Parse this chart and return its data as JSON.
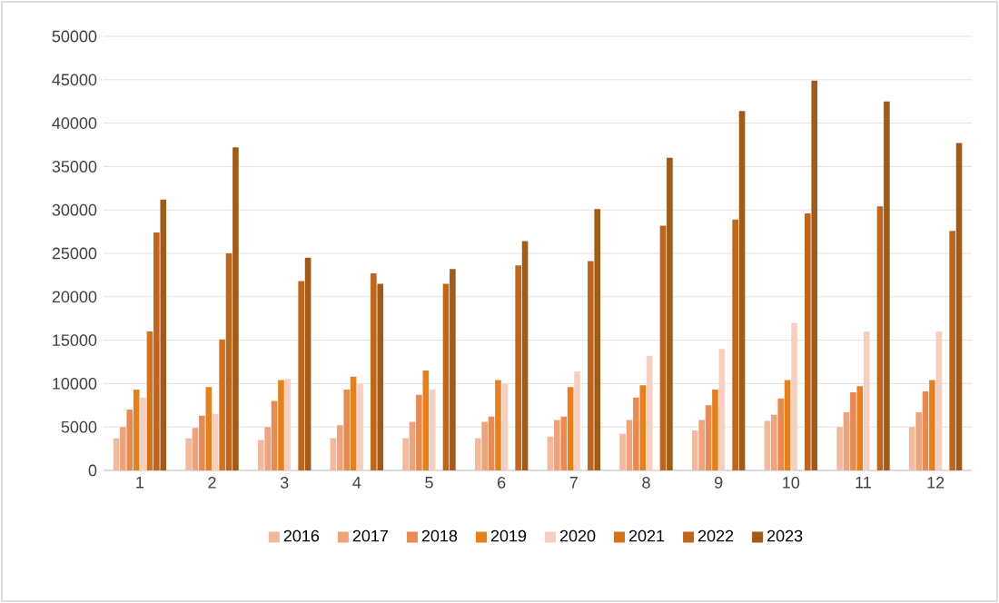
{
  "chart_data": {
    "type": "bar",
    "categories": [
      "1",
      "2",
      "3",
      "4",
      "5",
      "6",
      "7",
      "8",
      "9",
      "10",
      "11",
      "12"
    ],
    "series": [
      {
        "name": "2016",
        "color": "#f4b89a",
        "values": [
          3700,
          3700,
          3500,
          3700,
          3700,
          3700,
          3900,
          4200,
          4600,
          5700,
          5000,
          5000
        ]
      },
      {
        "name": "2017",
        "color": "#f0a27a",
        "values": [
          5000,
          4900,
          5000,
          5200,
          5600,
          5600,
          5800,
          5800,
          5800,
          6400,
          6700,
          6700
        ]
      },
      {
        "name": "2018",
        "color": "#ea8a50",
        "values": [
          7000,
          6300,
          8000,
          9300,
          8700,
          6200,
          6200,
          8400,
          7500,
          8300,
          9000,
          9100
        ]
      },
      {
        "name": "2019",
        "color": "#e87f1a",
        "values": [
          9300,
          9600,
          10400,
          10800,
          11500,
          10400,
          9600,
          9800,
          9300,
          10400,
          9700,
          10400
        ]
      },
      {
        "name": "2020",
        "color": "#f6cfc0",
        "values": [
          8400,
          6500,
          10500,
          10000,
          9300,
          10000,
          11400,
          13200,
          14000,
          17000,
          16000,
          16000
        ]
      },
      {
        "name": "2021",
        "color": "#d5731a",
        "values": [
          16000,
          15100,
          null,
          null,
          null,
          null,
          null,
          null,
          null,
          null,
          null,
          null
        ]
      },
      {
        "name": "2022",
        "color": "#c0651a",
        "values": [
          27400,
          25000,
          21800,
          22700,
          21500,
          23600,
          24100,
          28200,
          28900,
          29600,
          30400,
          27600
        ]
      },
      {
        "name": "2023",
        "color": "#a25a16",
        "values": [
          31200,
          37200,
          24500,
          21500,
          23200,
          26400,
          30100,
          36000,
          41400,
          44900,
          42500,
          37700
        ]
      }
    ],
    "ylim": [
      0,
      50000
    ],
    "yticks": [
      0,
      5000,
      10000,
      15000,
      20000,
      25000,
      30000,
      35000,
      40000,
      45000,
      50000
    ],
    "grid": "y",
    "legend": "bottom"
  }
}
